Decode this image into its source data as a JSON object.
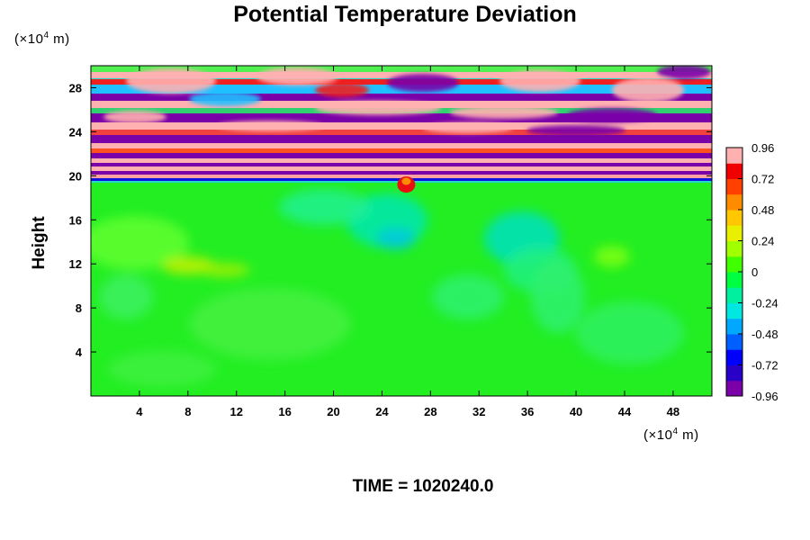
{
  "chart_data": {
    "type": "heatmap",
    "title": "Potential Temperature Deviation",
    "ylabel": "Height",
    "x_unit": {
      "prefix": "(×10",
      "exp": "4",
      "suffix": " m)"
    },
    "y_unit": {
      "prefix": "(×10",
      "exp": "4",
      "suffix": " m)"
    },
    "xlim": [
      0,
      51.2
    ],
    "ylim": [
      0,
      30
    ],
    "x_ticks": [
      4,
      8,
      12,
      16,
      20,
      24,
      28,
      32,
      36,
      40,
      44,
      48
    ],
    "y_ticks": [
      4,
      8,
      12,
      16,
      20,
      24,
      28
    ],
    "colorbar": {
      "min": -0.96,
      "max": 0.96,
      "tick_labels": [
        "0.96",
        "0.72",
        "0.48",
        "0.24",
        "0",
        "-0.24",
        "-0.48",
        "-0.72",
        "-0.96"
      ],
      "tick_values": [
        0.96,
        0.72,
        0.48,
        0.24,
        0,
        -0.24,
        -0.48,
        -0.72,
        -0.96
      ]
    },
    "grid": false,
    "legend": "colorbar-right"
  },
  "footer": "TIME = 1020240.0"
}
